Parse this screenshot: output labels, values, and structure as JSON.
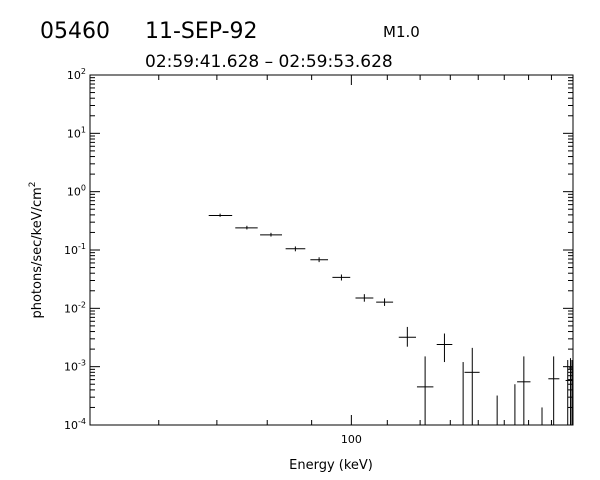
{
  "header": {
    "event_id": "05460",
    "date": "11-SEP-92",
    "flare_class": "M1.0",
    "time_range": "02:59:41.628 – 02:59:53.628"
  },
  "chart_data": {
    "type": "scatter",
    "style": "error-bars",
    "title": "",
    "xlabel": "Energy (keV)",
    "ylabel_parts": {
      "base": "photons/sec/keV/cm",
      "sup": "2"
    },
    "x_scale": "log",
    "y_scale": "log",
    "xlim": [
      50,
      180
    ],
    "ylim": [
      0.0001,
      100
    ],
    "x_tick_labels": [
      {
        "value": 100,
        "label": "100"
      }
    ],
    "y_tick_labels": [
      {
        "exp": 2,
        "label": "10",
        "sup": "2"
      },
      {
        "exp": 1,
        "label": "10",
        "sup": "1"
      },
      {
        "exp": 0,
        "label": "10",
        "sup": "0"
      },
      {
        "exp": -1,
        "label": "10",
        "sup": "-1"
      },
      {
        "exp": -2,
        "label": "10",
        "sup": "-2"
      },
      {
        "exp": -3,
        "label": "10",
        "sup": "-3"
      },
      {
        "exp": -4,
        "label": "10",
        "sup": "-4"
      }
    ],
    "grid": false,
    "points": [
      {
        "x": 70.6,
        "y": 0.39,
        "x_lo": 68.5,
        "x_hi": 72.9,
        "y_lo": 0.37,
        "y_hi": 0.42
      },
      {
        "x": 75.8,
        "y": 0.24,
        "x_lo": 73.5,
        "x_hi": 78.0,
        "y_lo": 0.225,
        "y_hi": 0.26
      },
      {
        "x": 80.8,
        "y": 0.182,
        "x_lo": 78.5,
        "x_hi": 83.2,
        "y_lo": 0.17,
        "y_hi": 0.197
      },
      {
        "x": 86.2,
        "y": 0.105,
        "x_lo": 84.0,
        "x_hi": 88.5,
        "y_lo": 0.095,
        "y_hi": 0.115
      },
      {
        "x": 91.8,
        "y": 0.068,
        "x_lo": 89.7,
        "x_hi": 94.0,
        "y_lo": 0.062,
        "y_hi": 0.075
      },
      {
        "x": 97.4,
        "y": 0.034,
        "x_lo": 95.1,
        "x_hi": 99.7,
        "y_lo": 0.03,
        "y_hi": 0.038
      },
      {
        "x": 103.5,
        "y": 0.015,
        "x_lo": 101.1,
        "x_hi": 106.0,
        "y_lo": 0.013,
        "y_hi": 0.0175
      },
      {
        "x": 109.2,
        "y": 0.0128,
        "x_lo": 106.8,
        "x_hi": 111.7,
        "y_lo": 0.011,
        "y_hi": 0.0148
      },
      {
        "x": 116.0,
        "y": 0.0032,
        "x_lo": 113.4,
        "x_hi": 118.7,
        "y_lo": 0.0022,
        "y_hi": 0.0048
      },
      {
        "x": 121.6,
        "y": 0.00045,
        "x_lo": 119.0,
        "x_hi": 124.3,
        "y_lo": 0.0001,
        "y_hi": 0.0015
      },
      {
        "x": 128.0,
        "y": 0.0024,
        "x_lo": 125.4,
        "x_hi": 130.7,
        "y_lo": 0.0012,
        "y_hi": 0.0037
      },
      {
        "x": 134.5,
        "y": 0.0001,
        "x_lo": 134.5,
        "x_hi": 134.5,
        "y_lo": 0.0001,
        "y_hi": 0.0012
      },
      {
        "x": 137.8,
        "y": 0.0008,
        "x_lo": 135.0,
        "x_hi": 140.5,
        "y_lo": 0.0001,
        "y_hi": 0.0021
      },
      {
        "x": 147.2,
        "y": 0.0001,
        "x_lo": 147.2,
        "x_hi": 147.2,
        "y_lo": 0.0001,
        "y_hi": 0.00032
      },
      {
        "x": 154.3,
        "y": 0.0001,
        "x_lo": 154.3,
        "x_hi": 154.3,
        "y_lo": 0.0001,
        "y_hi": 0.0005
      },
      {
        "x": 158.0,
        "y": 0.00055,
        "x_lo": 155.2,
        "x_hi": 160.8,
        "y_lo": 0.0001,
        "y_hi": 0.0015
      },
      {
        "x": 165.8,
        "y": 0.0001,
        "x_lo": 165.8,
        "x_hi": 165.8,
        "y_lo": 0.0001,
        "y_hi": 0.0002
      },
      {
        "x": 171.0,
        "y": 0.00062,
        "x_lo": 168.6,
        "x_hi": 173.6,
        "y_lo": 0.0001,
        "y_hi": 0.0015
      },
      {
        "x": 177.5,
        "y": 0.0001,
        "x_lo": 177.5,
        "x_hi": 177.5,
        "y_lo": 0.0001,
        "y_hi": 0.0013
      },
      {
        "x": 178.8,
        "y": 0.00058,
        "x_lo": 176.5,
        "x_hi": 179.9,
        "y_lo": 0.0001,
        "y_hi": 0.0014
      },
      {
        "x": 179.5,
        "y": 0.00095,
        "x_lo": 178.0,
        "x_hi": 180.0,
        "y_lo": 0.0001,
        "y_hi": 0.0013
      }
    ]
  }
}
